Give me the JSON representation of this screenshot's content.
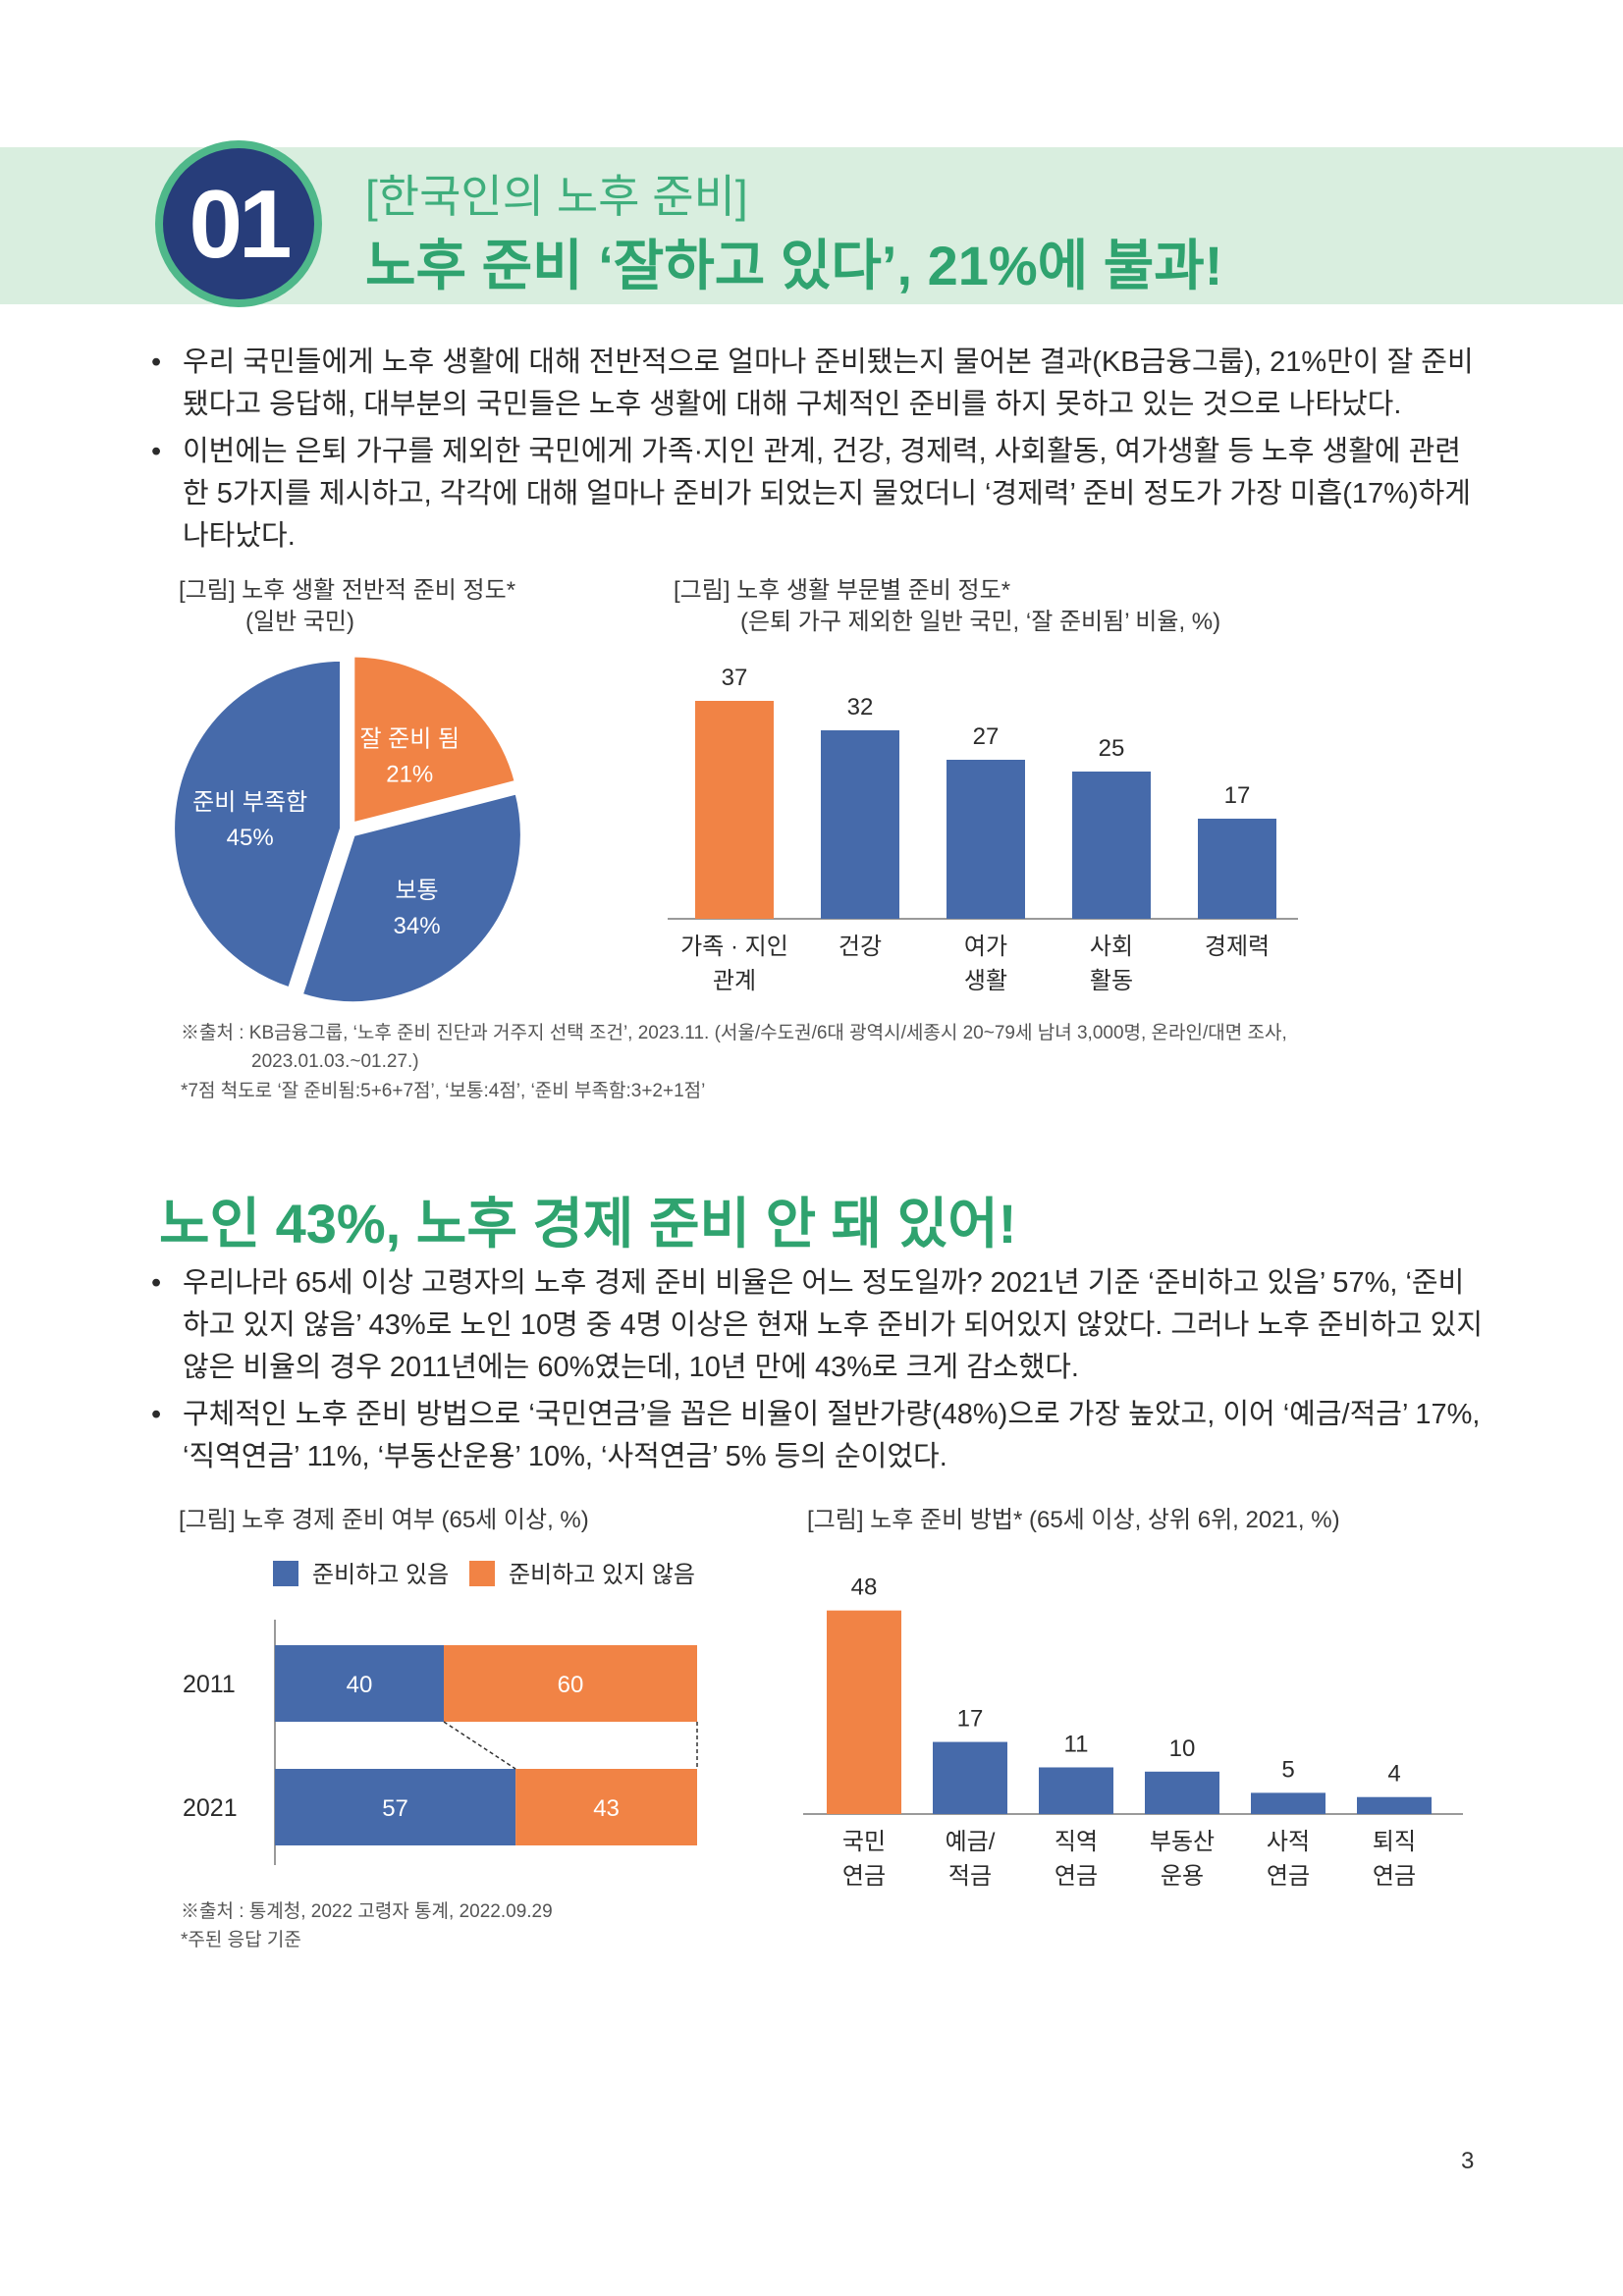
{
  "colors": {
    "accent_green": "#2fa36f",
    "band": "#d9eedf",
    "navy": "#273d7a",
    "blue": "#466aaa",
    "orange": "#f18345"
  },
  "section1": {
    "number": "01",
    "subtitle": "[한국인의 노후 준비]",
    "headline": "노후 준비 ‘잘하고 있다’, 21%에 불과!",
    "bullets": [
      "우리 국민들에게 노후 생활에 대해 전반적으로 얼마나 준비됐는지 물어본 결과(KB금융그룹), 21%만이 잘 준비 됐다고 응답해, 대부분의 국민들은 노후 생활에 대해 구체적인 준비를 하지 못하고 있는 것으로 나타났다.",
      "이번에는 은퇴 가구를 제외한 국민에게 가족·지인 관계, 건강, 경제력, 사회활동, 여가생활 등 노후 생활에 관련한 5가지를 제시하고, 각각에 대해 얼마나 준비가 되었는지 물었더니 ‘경제력’ 준비 정도가 가장 미흡(17%)하게 나타났다."
    ],
    "pie_caption": {
      "line1": "[그림] 노후 생활 전반적 준비 정도*",
      "line2": "(일반 국민)"
    },
    "bar_caption": {
      "line1": "[그림] 노후 생활 부문별 준비 정도*",
      "line2": "(은퇴 가구 제외한 일반 국민, ‘잘 준비됨’ 비율, %)"
    },
    "source": {
      "line1": "※출처 : KB금융그룹, ‘노후 준비 진단과 거주지 선택 조건’, 2023.11. (서울/수도권/6대 광역시/세종시 20~79세 남녀 3,000명, 온라인/대면 조사,",
      "line2": "2023.01.03.~01.27.)",
      "line3": "*7점 척도로 ‘잘 준비됨:5+6+7점’, ‘보통:4점’, ‘준비 부족함:3+2+1점’"
    }
  },
  "section2": {
    "headline": "노인 43%, 노후 경제 준비 안 돼 있어!",
    "bullets": [
      "우리나라 65세 이상 고령자의 노후 경제 준비 비율은 어느 정도일까? 2021년 기준 ‘준비하고 있음’ 57%, ‘준비하고 있지 않음’ 43%로 노인 10명 중 4명 이상은 현재 노후 준비가 되어있지 않았다. 그러나 노후 준비하고 있지 않은 비율의 경우 2011년에는 60%였는데, 10년 만에 43%로 크게 감소했다.",
      "구체적인 노후 준비 방법으로 ‘국민연금’을 꼽은 비율이 절반가량(48%)으로 가장 높았고, 이어 ‘예금/적금’ 17%, ‘직역연금’ 11%, ‘부동산운용’ 10%, ‘사적연금’ 5% 등의 순이었다."
    ],
    "stack_caption": "[그림] 노후 경제 준비 여부 (65세 이상, %)",
    "method_caption": "[그림] 노후 준비 방법* (65세 이상, 상위 6위, 2021, %)",
    "source": {
      "line1": "※출처 : 통계청, 2022 고령자 통계, 2022.09.29",
      "line2": "*주된 응답 기준"
    }
  },
  "page_number": "3",
  "chart_data": [
    {
      "type": "pie",
      "title": "",
      "slices": [
        {
          "label": "잘 준비 됨",
          "value": 21,
          "value_label": "21%",
          "color": "#f18345"
        },
        {
          "label": "보통",
          "value": 34,
          "value_label": "34%",
          "color": "#466aaa"
        },
        {
          "label": "준비 부족함",
          "value": 45,
          "value_label": "45%",
          "color": "#466aaa"
        }
      ]
    },
    {
      "type": "bar",
      "categories": [
        [
          "가족 · 지인",
          "관계"
        ],
        [
          "건강"
        ],
        [
          "여가",
          "생활"
        ],
        [
          "사회",
          "활동"
        ],
        [
          "경제력"
        ]
      ],
      "values": [
        37,
        32,
        27,
        25,
        17
      ],
      "colors": [
        "#f18345",
        "#466aaa",
        "#466aaa",
        "#466aaa",
        "#466aaa"
      ],
      "ylim": [
        0,
        40
      ]
    },
    {
      "type": "bar",
      "orientation": "horizontal-stacked",
      "categories": [
        "2011",
        "2021"
      ],
      "series": [
        {
          "name": "준비하고 있음",
          "values": [
            40,
            57
          ],
          "color": "#466aaa"
        },
        {
          "name": "준비하고 있지 않음",
          "values": [
            60,
            43
          ],
          "color": "#f18345"
        }
      ],
      "xlim": [
        0,
        100
      ],
      "legend": "top"
    },
    {
      "type": "bar",
      "categories": [
        [
          "국민",
          "연금"
        ],
        [
          "예금/",
          "적금"
        ],
        [
          "직역",
          "연금"
        ],
        [
          "부동산",
          "운용"
        ],
        [
          "사적",
          "연금"
        ],
        [
          "퇴직",
          "연금"
        ]
      ],
      "values": [
        48,
        17,
        11,
        10,
        5,
        4
      ],
      "colors": [
        "#f18345",
        "#466aaa",
        "#466aaa",
        "#466aaa",
        "#466aaa",
        "#466aaa"
      ],
      "ylim": [
        0,
        50
      ]
    }
  ]
}
